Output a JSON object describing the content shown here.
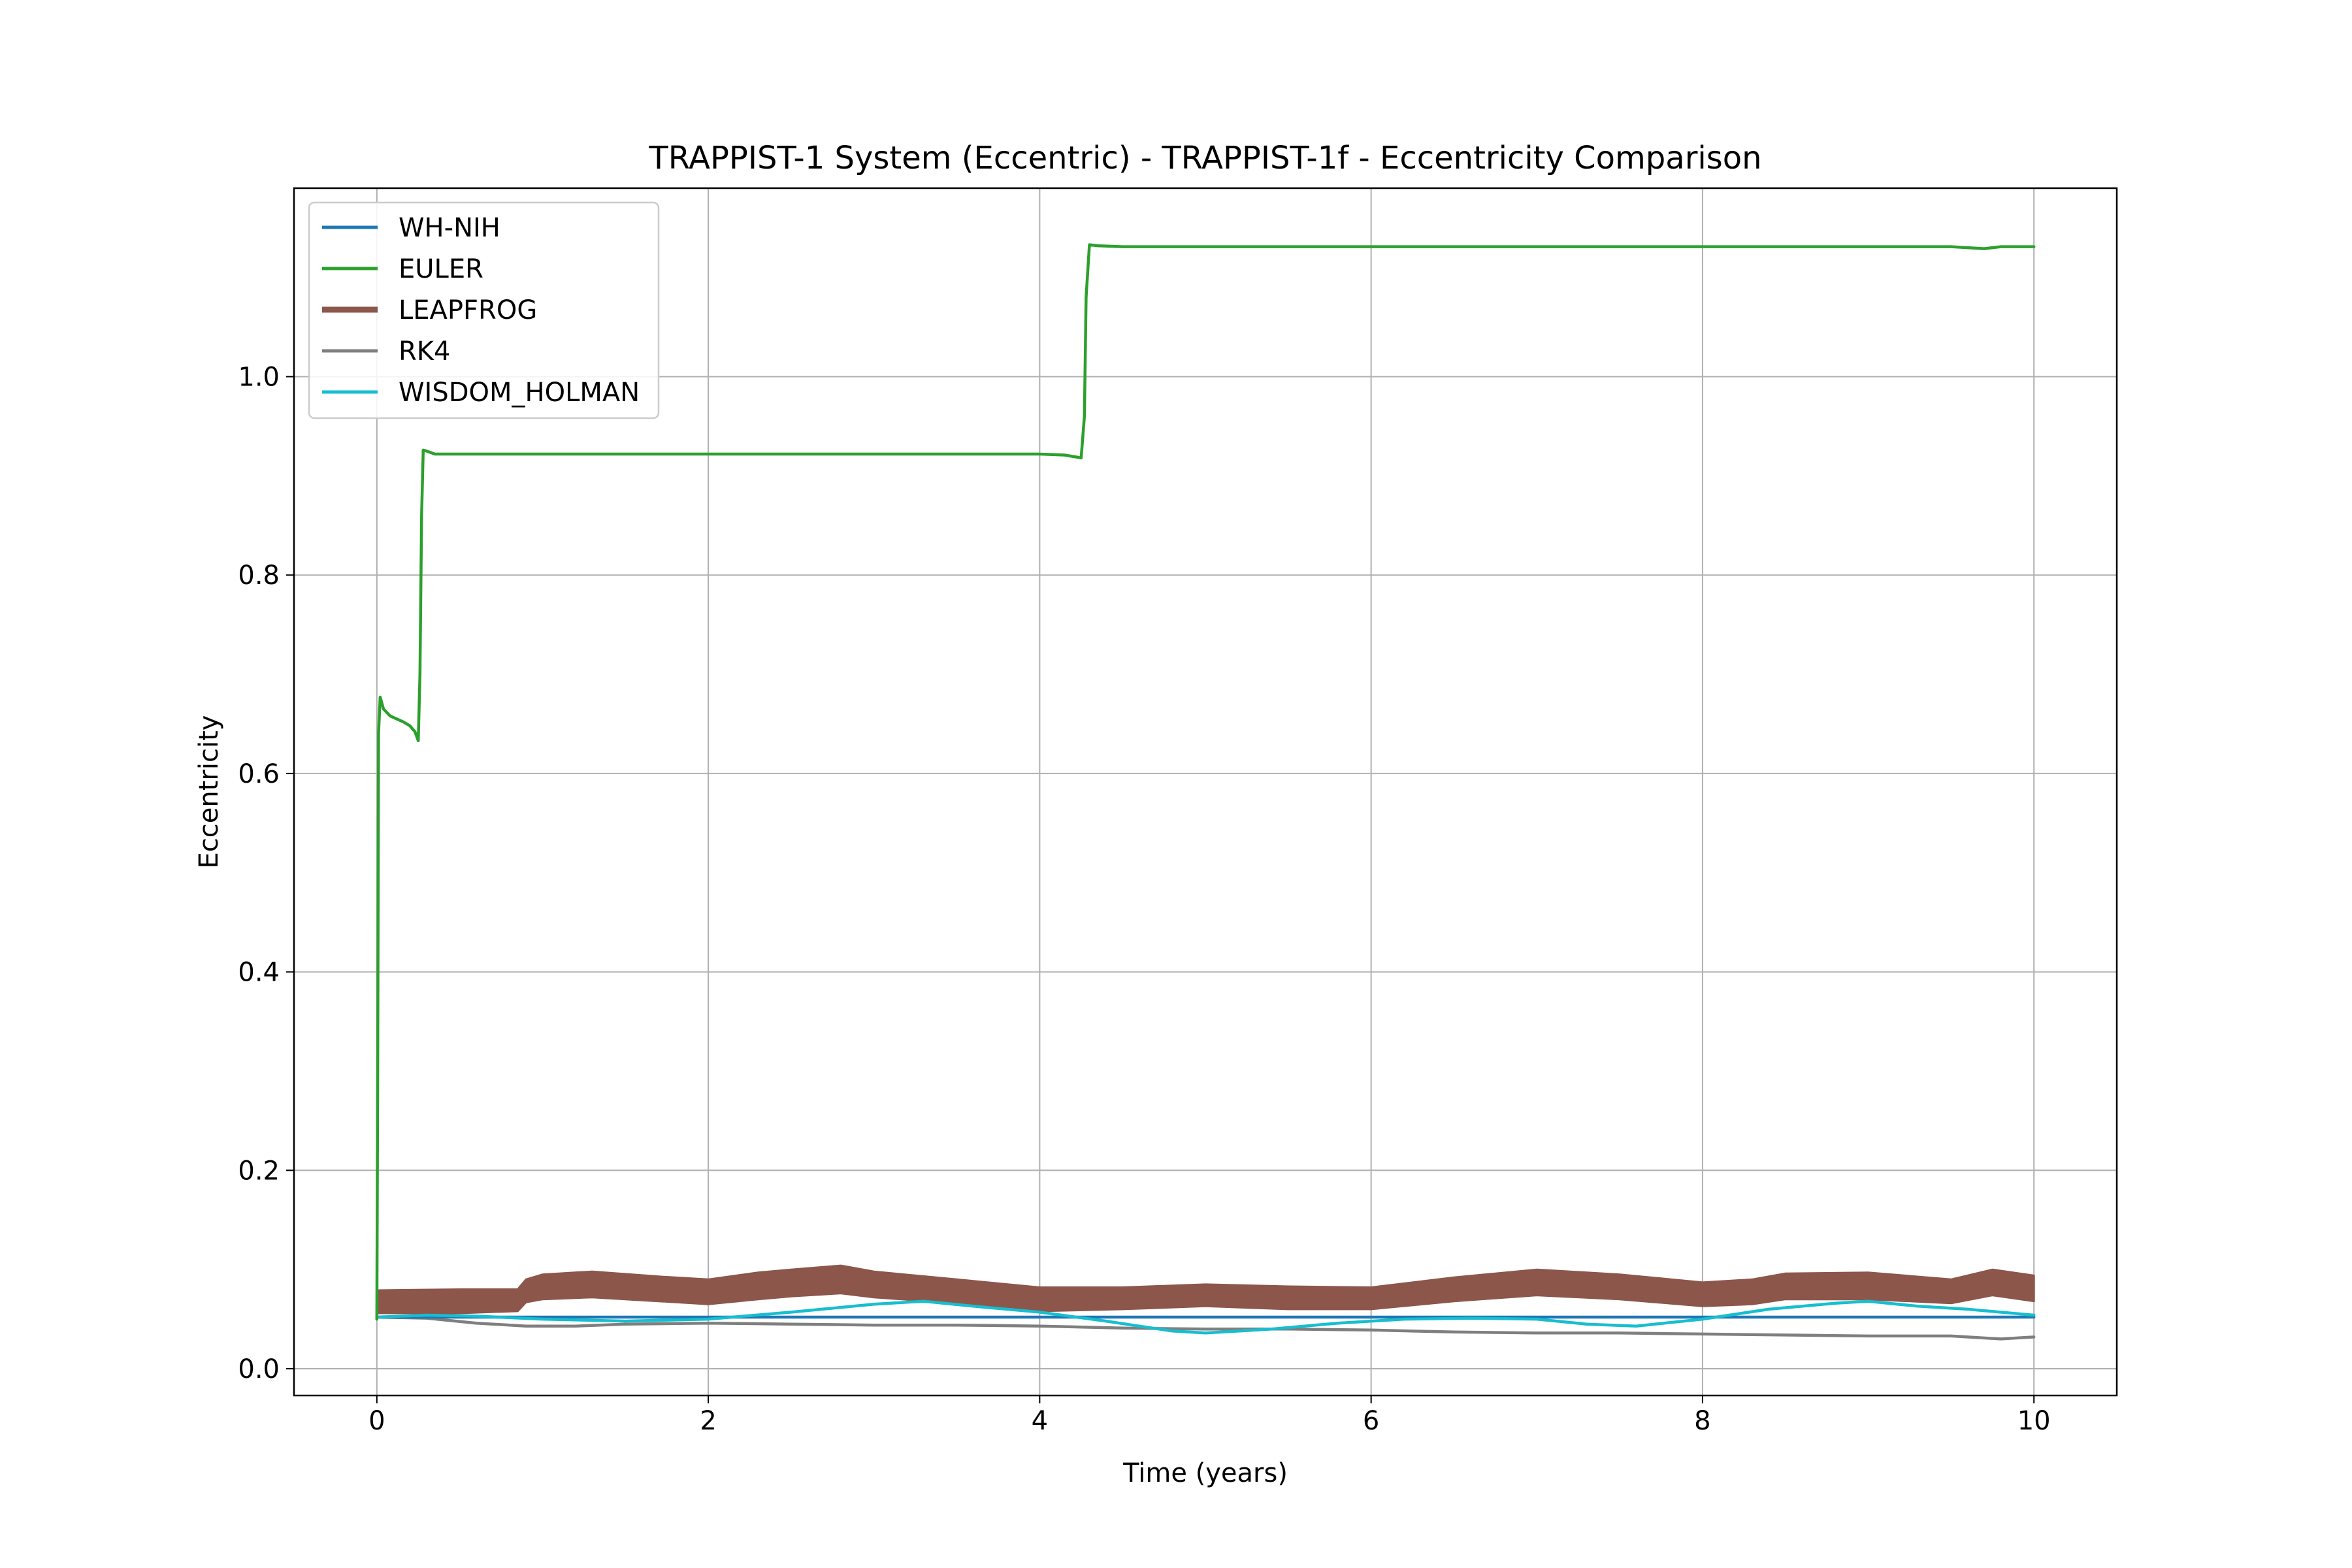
{
  "chart_data": {
    "type": "line",
    "title": "TRAPPIST-1 System (Eccentric) - TRAPPIST-1f - Eccentricity Comparison",
    "xlabel": "Time (years)",
    "ylabel": "Eccentricity",
    "xlim": [
      -0.5,
      10.5
    ],
    "ylim": [
      -0.027,
      1.19
    ],
    "xticks": [
      0,
      2,
      4,
      6,
      8,
      10
    ],
    "yticks": [
      0.0,
      0.2,
      0.4,
      0.6,
      0.8,
      1.0
    ],
    "xtick_labels": [
      "0",
      "2",
      "4",
      "6",
      "8",
      "10"
    ],
    "ytick_labels": [
      "0.0",
      "0.2",
      "0.4",
      "0.6",
      "0.8",
      "1.0"
    ],
    "grid": true,
    "legend_position": "upper-left",
    "series": [
      {
        "name": "WH-NIH",
        "color": "#1f77b4",
        "x": [
          0,
          1,
          2,
          3,
          4,
          5,
          6,
          7,
          8,
          9,
          10
        ],
        "y": [
          0.052,
          0.052,
          0.052,
          0.052,
          0.052,
          0.052,
          0.052,
          0.052,
          0.052,
          0.052,
          0.052
        ]
      },
      {
        "name": "EULER",
        "color": "#2ca02c",
        "x": [
          0,
          0.005,
          0.01,
          0.02,
          0.04,
          0.08,
          0.12,
          0.16,
          0.2,
          0.23,
          0.25,
          0.26,
          0.27,
          0.28,
          0.3,
          0.35,
          0.5,
          1.0,
          2.0,
          3.0,
          4.0,
          4.15,
          4.22,
          4.25,
          4.27,
          4.28,
          4.3,
          4.35,
          4.5,
          5.0,
          6.0,
          7.0,
          8.0,
          9.0,
          9.5,
          9.7,
          9.8,
          10.0
        ],
        "y": [
          0.05,
          0.3,
          0.64,
          0.677,
          0.665,
          0.658,
          0.655,
          0.652,
          0.648,
          0.642,
          0.633,
          0.7,
          0.86,
          0.926,
          0.925,
          0.922,
          0.922,
          0.922,
          0.922,
          0.922,
          0.922,
          0.921,
          0.919,
          0.918,
          0.96,
          1.08,
          1.133,
          1.132,
          1.131,
          1.131,
          1.131,
          1.131,
          1.131,
          1.131,
          1.131,
          1.129,
          1.131,
          1.131
        ]
      },
      {
        "name": "LEAPFROG",
        "color": "#8c564b",
        "band": true,
        "x": [
          0,
          0.5,
          0.85,
          0.9,
          1.0,
          1.3,
          1.7,
          2.0,
          2.3,
          2.5,
          2.8,
          3.0,
          3.5,
          4.0,
          4.5,
          5.0,
          5.5,
          6.0,
          6.5,
          7.0,
          7.5,
          8.0,
          8.3,
          8.5,
          9.0,
          9.5,
          9.75,
          10.0
        ],
        "upper": [
          0.079,
          0.08,
          0.08,
          0.09,
          0.095,
          0.098,
          0.093,
          0.09,
          0.097,
          0.1,
          0.104,
          0.098,
          0.09,
          0.082,
          0.082,
          0.085,
          0.083,
          0.082,
          0.092,
          0.1,
          0.095,
          0.087,
          0.09,
          0.096,
          0.097,
          0.09,
          0.1,
          0.094
        ],
        "lower": [
          0.056,
          0.056,
          0.058,
          0.067,
          0.07,
          0.072,
          0.068,
          0.065,
          0.07,
          0.073,
          0.076,
          0.072,
          0.066,
          0.058,
          0.06,
          0.063,
          0.06,
          0.06,
          0.068,
          0.074,
          0.07,
          0.063,
          0.065,
          0.07,
          0.07,
          0.066,
          0.074,
          0.068
        ]
      },
      {
        "name": "RK4",
        "color": "#7f7f7f",
        "x": [
          0,
          0.3,
          0.6,
          0.9,
          1.2,
          1.5,
          2.0,
          2.5,
          3.0,
          3.5,
          4.0,
          4.5,
          5.0,
          5.5,
          6.0,
          6.5,
          7.0,
          7.5,
          8.0,
          8.5,
          9.0,
          9.5,
          9.8,
          10.0
        ],
        "y": [
          0.052,
          0.051,
          0.046,
          0.043,
          0.043,
          0.045,
          0.046,
          0.045,
          0.044,
          0.044,
          0.043,
          0.041,
          0.04,
          0.04,
          0.039,
          0.037,
          0.036,
          0.036,
          0.035,
          0.034,
          0.033,
          0.033,
          0.03,
          0.032
        ]
      },
      {
        "name": "WISDOM_HOLMAN",
        "color": "#17becf",
        "x": [
          0,
          0.3,
          0.6,
          1.0,
          1.5,
          2.0,
          2.5,
          3.0,
          3.3,
          3.6,
          4.0,
          4.4,
          4.8,
          5.0,
          5.4,
          5.8,
          6.2,
          6.6,
          7.0,
          7.3,
          7.6,
          8.0,
          8.4,
          8.8,
          9.0,
          9.3,
          9.6,
          10.0
        ],
        "y": [
          0.052,
          0.054,
          0.053,
          0.05,
          0.048,
          0.05,
          0.057,
          0.065,
          0.068,
          0.063,
          0.057,
          0.048,
          0.038,
          0.036,
          0.04,
          0.046,
          0.05,
          0.051,
          0.05,
          0.045,
          0.043,
          0.05,
          0.06,
          0.066,
          0.068,
          0.063,
          0.06,
          0.054
        ]
      }
    ]
  }
}
